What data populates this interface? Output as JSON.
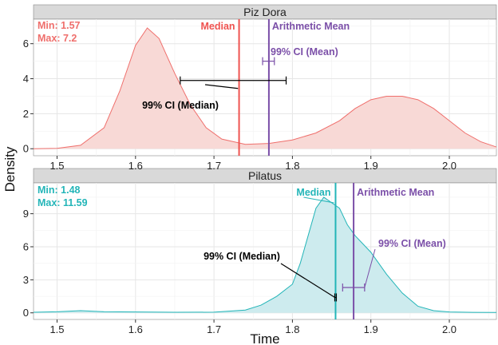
{
  "chart_data": {
    "type": "area",
    "xlabel": "Time",
    "ylabel": "Density",
    "xlim": [
      1.47,
      2.06
    ],
    "x_ticks": [
      "1.5",
      "1.6",
      "1.7",
      "1.8",
      "1.9",
      "2.0"
    ],
    "grid": true,
    "panels": [
      {
        "title": "Piz Dora",
        "fill": "#f8d9d6",
        "stroke": "#ef6f6c",
        "ylim": [
          -0.4,
          7.4
        ],
        "y_ticks": [
          "0",
          "2",
          "4",
          "6"
        ],
        "min_label": "Min: 1.57",
        "max_label": "Max: 7.2",
        "label_color": "#ef6f6c",
        "density": [
          [
            1.47,
            0
          ],
          [
            1.5,
            0.02
          ],
          [
            1.53,
            0.2
          ],
          [
            1.56,
            1.2
          ],
          [
            1.58,
            3.3
          ],
          [
            1.6,
            5.9
          ],
          [
            1.615,
            6.9
          ],
          [
            1.63,
            6.3
          ],
          [
            1.65,
            4.3
          ],
          [
            1.67,
            2.5
          ],
          [
            1.69,
            1.2
          ],
          [
            1.71,
            0.55
          ],
          [
            1.74,
            0.25
          ],
          [
            1.77,
            0.3
          ],
          [
            1.8,
            0.5
          ],
          [
            1.83,
            0.9
          ],
          [
            1.86,
            1.6
          ],
          [
            1.88,
            2.3
          ],
          [
            1.9,
            2.8
          ],
          [
            1.92,
            3.0
          ],
          [
            1.94,
            3.0
          ],
          [
            1.96,
            2.8
          ],
          [
            1.98,
            2.3
          ],
          [
            2.0,
            1.6
          ],
          [
            2.02,
            0.9
          ],
          [
            2.04,
            0.4
          ],
          [
            2.06,
            0.1
          ]
        ],
        "median": {
          "value": 1.732,
          "label": "Median",
          "color": "#ef5350"
        },
        "mean": {
          "value": 1.77,
          "label": "Arithmetic Mean",
          "color": "#7b4fa8"
        },
        "ci_median": {
          "low": 1.657,
          "high": 1.792,
          "y": 3.9,
          "label": "99% CI (Median)"
        },
        "ci_mean": {
          "low": 1.762,
          "high": 1.777,
          "y": 5.0,
          "label": "99% CI (Mean)"
        }
      },
      {
        "title": "Pilatus",
        "fill": "#cdebee",
        "stroke": "#23b5b8",
        "ylim": [
          -0.6,
          11.8
        ],
        "y_ticks": [
          "0",
          "3",
          "6",
          "9"
        ],
        "min_label": "Min: 1.48",
        "max_label": "Max: 11.59",
        "label_color": "#23b5b8",
        "density": [
          [
            1.47,
            0.05
          ],
          [
            1.5,
            0.1
          ],
          [
            1.53,
            0.2
          ],
          [
            1.56,
            0.1
          ],
          [
            1.6,
            0.08
          ],
          [
            1.65,
            0.05
          ],
          [
            1.7,
            0.06
          ],
          [
            1.74,
            0.25
          ],
          [
            1.76,
            0.7
          ],
          [
            1.78,
            1.5
          ],
          [
            1.8,
            2.6
          ],
          [
            1.81,
            4.5
          ],
          [
            1.82,
            7.0
          ],
          [
            1.83,
            9.5
          ],
          [
            1.84,
            10.5
          ],
          [
            1.85,
            10.0
          ],
          [
            1.86,
            9.5
          ],
          [
            1.87,
            8.0
          ],
          [
            1.88,
            7.0
          ],
          [
            1.9,
            5.5
          ],
          [
            1.92,
            3.5
          ],
          [
            1.94,
            1.8
          ],
          [
            1.96,
            0.6
          ],
          [
            1.98,
            0.2
          ],
          [
            2.0,
            0.08
          ],
          [
            2.03,
            0.04
          ],
          [
            2.06,
            0.03
          ]
        ],
        "median": {
          "value": 1.855,
          "label": "Median",
          "color": "#23b5b8"
        },
        "mean": {
          "value": 1.878,
          "label": "Arithmetic Mean",
          "color": "#7b4fa8"
        },
        "ci_median": {
          "low": 1.854,
          "high": 1.856,
          "y": 1.4,
          "label": "99% CI (Median)"
        },
        "ci_mean": {
          "low": 1.864,
          "high": 1.892,
          "y": 2.3,
          "label": "99% CI  (Mean)"
        }
      }
    ]
  }
}
